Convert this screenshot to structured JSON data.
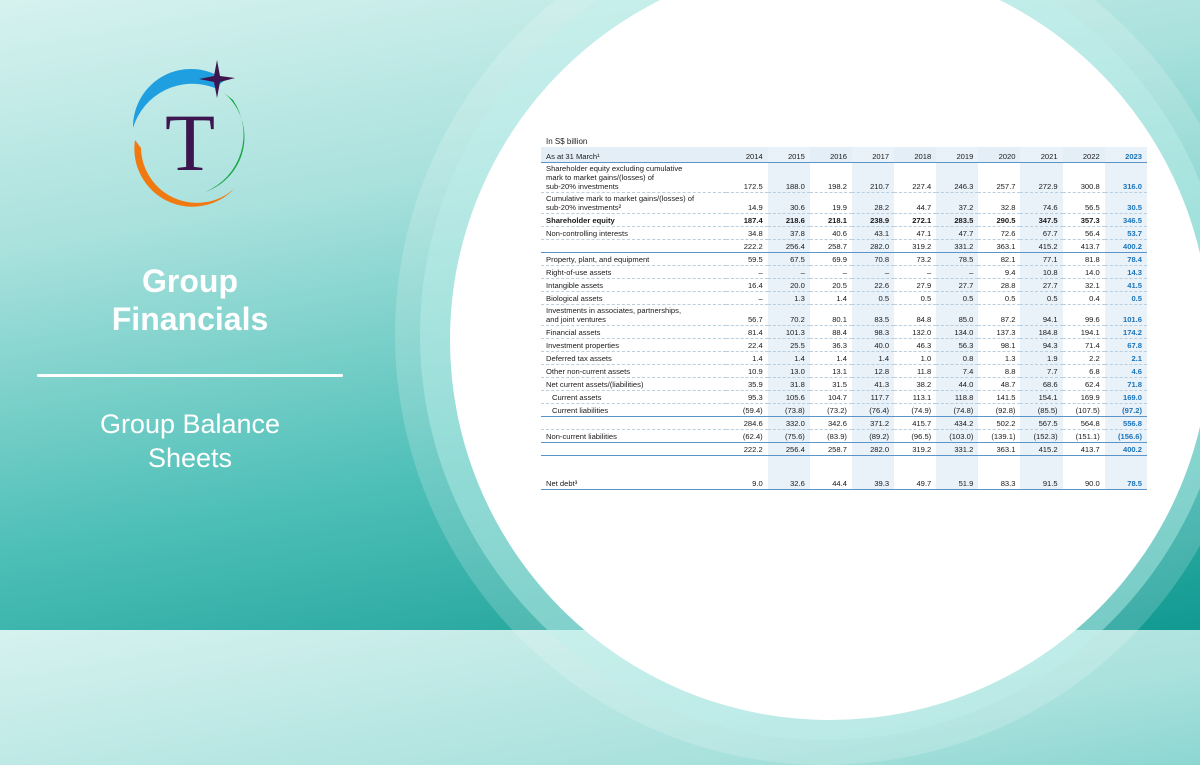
{
  "left_panel": {
    "logo_letter": "T",
    "title_line1": "Group",
    "title_line2": "Financials",
    "subtitle_line1": "Group Balance",
    "subtitle_line2": "Sheets"
  },
  "colors": {
    "accent": "#1c74b8",
    "logo_purple": "#3d1650",
    "logo_blue": "#1f9fe0",
    "logo_green": "#1aa444",
    "logo_orange": "#f07a10"
  },
  "table": {
    "unit": "In S$ billion",
    "header_label": "As at 31 March¹",
    "years": [
      "2014",
      "2015",
      "2016",
      "2017",
      "2018",
      "2019",
      "2020",
      "2021",
      "2022",
      "2023"
    ],
    "rows": [
      {
        "label": "Shareholder equity excluding cumulative\nmark to market gains/(losses) of\nsub-20% investments",
        "values": [
          "172.5",
          "188.0",
          "198.2",
          "210.7",
          "227.4",
          "246.3",
          "257.7",
          "272.9",
          "300.8",
          "316.0"
        ]
      },
      {
        "label": "Cumulative mark to market gains/(losses) of\nsub-20% investments²",
        "values": [
          "14.9",
          "30.6",
          "19.9",
          "28.2",
          "44.7",
          "37.2",
          "32.8",
          "74.6",
          "56.5",
          "30.5"
        ]
      },
      {
        "label": "Shareholder equity",
        "bold": true,
        "values": [
          "187.4",
          "218.6",
          "218.1",
          "238.9",
          "272.1",
          "283.5",
          "290.5",
          "347.5",
          "357.3",
          "346.5"
        ]
      },
      {
        "label": "Non-controlling interests",
        "values": [
          "34.8",
          "37.8",
          "40.6",
          "43.1",
          "47.1",
          "47.7",
          "72.6",
          "67.7",
          "56.4",
          "53.7"
        ]
      },
      {
        "label": "",
        "thick": true,
        "values": [
          "222.2",
          "256.4",
          "258.7",
          "282.0",
          "319.2",
          "331.2",
          "363.1",
          "415.2",
          "413.7",
          "400.2"
        ]
      },
      {
        "label": "Property, plant, and equipment",
        "values": [
          "59.5",
          "67.5",
          "69.9",
          "70.8",
          "73.2",
          "78.5",
          "82.1",
          "77.1",
          "81.8",
          "78.4"
        ]
      },
      {
        "label": "Right-of-use assets",
        "values": [
          "–",
          "–",
          "–",
          "–",
          "–",
          "–",
          "9.4",
          "10.8",
          "14.0",
          "14.3"
        ]
      },
      {
        "label": "Intangible assets",
        "values": [
          "16.4",
          "20.0",
          "20.5",
          "22.6",
          "27.9",
          "27.7",
          "28.8",
          "27.7",
          "32.1",
          "41.5"
        ]
      },
      {
        "label": "Biological assets",
        "values": [
          "–",
          "1.3",
          "1.4",
          "0.5",
          "0.5",
          "0.5",
          "0.5",
          "0.5",
          "0.4",
          "0.5"
        ]
      },
      {
        "label": "Investments in associates, partnerships,\nand joint ventures",
        "values": [
          "56.7",
          "70.2",
          "80.1",
          "83.5",
          "84.8",
          "85.0",
          "87.2",
          "94.1",
          "99.6",
          "101.6"
        ]
      },
      {
        "label": "Financial assets",
        "values": [
          "81.4",
          "101.3",
          "88.4",
          "98.3",
          "132.0",
          "134.0",
          "137.3",
          "184.8",
          "194.1",
          "174.2"
        ]
      },
      {
        "label": "Investment properties",
        "values": [
          "22.4",
          "25.5",
          "36.3",
          "40.0",
          "46.3",
          "56.3",
          "98.1",
          "94.3",
          "71.4",
          "67.8"
        ]
      },
      {
        "label": "Deferred tax assets",
        "values": [
          "1.4",
          "1.4",
          "1.4",
          "1.4",
          "1.0",
          "0.8",
          "1.3",
          "1.9",
          "2.2",
          "2.1"
        ]
      },
      {
        "label": "Other non-current assets",
        "values": [
          "10.9",
          "13.0",
          "13.1",
          "12.8",
          "11.8",
          "7.4",
          "8.8",
          "7.7",
          "6.8",
          "4.6"
        ]
      },
      {
        "label": "Net current assets/(liabilities)",
        "values": [
          "35.9",
          "31.8",
          "31.5",
          "41.3",
          "38.2",
          "44.0",
          "48.7",
          "68.6",
          "62.4",
          "71.8"
        ]
      },
      {
        "label": "Current assets",
        "indent": true,
        "values": [
          "95.3",
          "105.6",
          "104.7",
          "117.7",
          "113.1",
          "118.8",
          "141.5",
          "154.1",
          "169.9",
          "169.0"
        ]
      },
      {
        "label": "Current liabilities",
        "indent": true,
        "thick": true,
        "values": [
          "(59.4)",
          "(73.8)",
          "(73.2)",
          "(76.4)",
          "(74.9)",
          "(74.8)",
          "(92.8)",
          "(85.5)",
          "(107.5)",
          "(97.2)"
        ]
      },
      {
        "label": "",
        "values": [
          "284.6",
          "332.0",
          "342.6",
          "371.2",
          "415.7",
          "434.2",
          "502.2",
          "567.5",
          "564.8",
          "556.8"
        ]
      },
      {
        "label": "Non-current liabilities",
        "thick": true,
        "values": [
          "(62.4)",
          "(75.6)",
          "(83.9)",
          "(89.2)",
          "(96.5)",
          "(103.0)",
          "(139.1)",
          "(152.3)",
          "(151.1)",
          "(156.6)"
        ]
      },
      {
        "label": "",
        "thick": true,
        "values": [
          "222.2",
          "256.4",
          "258.7",
          "282.0",
          "319.2",
          "331.2",
          "363.1",
          "415.2",
          "413.7",
          "400.2"
        ]
      },
      {
        "label": "Net debt³",
        "tall": true,
        "thick": true,
        "values": [
          "9.0",
          "32.6",
          "44.4",
          "39.3",
          "49.7",
          "51.9",
          "83.3",
          "91.5",
          "90.0",
          "78.5"
        ]
      }
    ]
  }
}
